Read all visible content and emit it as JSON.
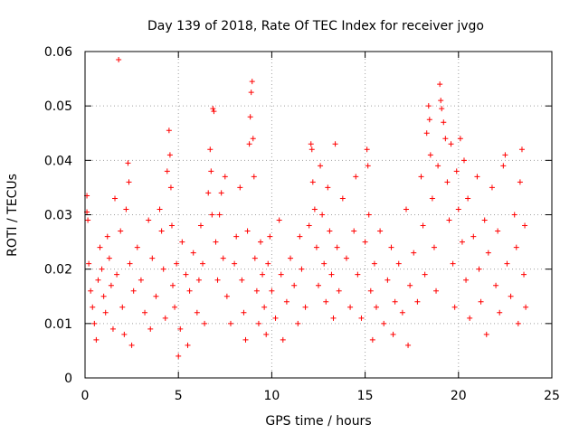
{
  "chart_data": {
    "type": "scatter",
    "title": "Day 139 of 2018, Rate Of TEC Index for receiver jvgo",
    "xlabel": "GPS time / hours",
    "ylabel": "ROTI / TECUs",
    "xlim": [
      0,
      25
    ],
    "ylim": [
      0,
      0.06
    ],
    "xticks": [
      0,
      5,
      10,
      15,
      20,
      25
    ],
    "xtick_labels": [
      "0",
      "5",
      "10",
      "15",
      "20",
      "25"
    ],
    "yticks": [
      0,
      0.01,
      0.02,
      0.03,
      0.04,
      0.05,
      0.06
    ],
    "ytick_labels": [
      "0",
      "0.01",
      "0.02",
      "0.03",
      "0.04",
      "0.05",
      "0.06"
    ],
    "grid": true,
    "marker": "+",
    "color": "#ff0000",
    "series": [
      {
        "name": "ROTI",
        "points": [
          [
            0.1,
            0.0335
          ],
          [
            0.1,
            0.0305
          ],
          [
            0.15,
            0.029
          ],
          [
            0.2,
            0.021
          ],
          [
            0.3,
            0.016
          ],
          [
            0.4,
            0.013
          ],
          [
            0.5,
            0.01
          ],
          [
            0.6,
            0.007
          ],
          [
            0.7,
            0.018
          ],
          [
            0.8,
            0.024
          ],
          [
            0.9,
            0.02
          ],
          [
            1.0,
            0.015
          ],
          [
            1.1,
            0.012
          ],
          [
            1.2,
            0.026
          ],
          [
            1.3,
            0.022
          ],
          [
            1.4,
            0.017
          ],
          [
            1.5,
            0.009
          ],
          [
            1.6,
            0.033
          ],
          [
            1.7,
            0.019
          ],
          [
            1.8,
            0.0585
          ],
          [
            1.9,
            0.027
          ],
          [
            2.0,
            0.013
          ],
          [
            2.1,
            0.008
          ],
          [
            2.2,
            0.031
          ],
          [
            2.3,
            0.0395
          ],
          [
            2.35,
            0.036
          ],
          [
            2.4,
            0.021
          ],
          [
            2.5,
            0.006
          ],
          [
            2.6,
            0.016
          ],
          [
            2.8,
            0.024
          ],
          [
            3.0,
            0.018
          ],
          [
            3.2,
            0.012
          ],
          [
            3.4,
            0.029
          ],
          [
            3.5,
            0.009
          ],
          [
            3.6,
            0.022
          ],
          [
            3.8,
            0.015
          ],
          [
            4.0,
            0.031
          ],
          [
            4.1,
            0.027
          ],
          [
            4.2,
            0.02
          ],
          [
            4.3,
            0.011
          ],
          [
            4.4,
            0.038
          ],
          [
            4.5,
            0.0455
          ],
          [
            4.55,
            0.041
          ],
          [
            4.6,
            0.035
          ],
          [
            4.65,
            0.028
          ],
          [
            4.7,
            0.017
          ],
          [
            4.8,
            0.013
          ],
          [
            4.9,
            0.021
          ],
          [
            5.0,
            0.004
          ],
          [
            5.1,
            0.009
          ],
          [
            5.2,
            0.025
          ],
          [
            5.4,
            0.019
          ],
          [
            5.5,
            0.006
          ],
          [
            5.6,
            0.016
          ],
          [
            5.8,
            0.023
          ],
          [
            6.0,
            0.012
          ],
          [
            6.1,
            0.018
          ],
          [
            6.2,
            0.028
          ],
          [
            6.3,
            0.021
          ],
          [
            6.4,
            0.01
          ],
          [
            6.6,
            0.034
          ],
          [
            6.7,
            0.042
          ],
          [
            6.75,
            0.038
          ],
          [
            6.8,
            0.03
          ],
          [
            6.85,
            0.0495
          ],
          [
            6.9,
            0.049
          ],
          [
            7.0,
            0.025
          ],
          [
            7.1,
            0.018
          ],
          [
            7.2,
            0.03
          ],
          [
            7.3,
            0.034
          ],
          [
            7.4,
            0.022
          ],
          [
            7.5,
            0.037
          ],
          [
            7.6,
            0.015
          ],
          [
            7.8,
            0.01
          ],
          [
            8.0,
            0.021
          ],
          [
            8.1,
            0.026
          ],
          [
            8.3,
            0.035
          ],
          [
            8.4,
            0.018
          ],
          [
            8.5,
            0.012
          ],
          [
            8.6,
            0.007
          ],
          [
            8.7,
            0.027
          ],
          [
            8.8,
            0.043
          ],
          [
            8.85,
            0.048
          ],
          [
            8.9,
            0.0525
          ],
          [
            8.95,
            0.0545
          ],
          [
            9.0,
            0.044
          ],
          [
            9.05,
            0.037
          ],
          [
            9.1,
            0.022
          ],
          [
            9.2,
            0.016
          ],
          [
            9.3,
            0.01
          ],
          [
            9.4,
            0.025
          ],
          [
            9.5,
            0.019
          ],
          [
            9.6,
            0.013
          ],
          [
            9.7,
            0.008
          ],
          [
            9.8,
            0.021
          ],
          [
            9.9,
            0.026
          ],
          [
            10.0,
            0.016
          ],
          [
            10.2,
            0.011
          ],
          [
            10.4,
            0.029
          ],
          [
            10.5,
            0.019
          ],
          [
            10.6,
            0.007
          ],
          [
            10.8,
            0.014
          ],
          [
            11.0,
            0.022
          ],
          [
            11.2,
            0.017
          ],
          [
            11.4,
            0.01
          ],
          [
            11.5,
            0.026
          ],
          [
            11.6,
            0.02
          ],
          [
            11.8,
            0.013
          ],
          [
            12.0,
            0.028
          ],
          [
            12.1,
            0.043
          ],
          [
            12.15,
            0.042
          ],
          [
            12.2,
            0.036
          ],
          [
            12.3,
            0.031
          ],
          [
            12.4,
            0.024
          ],
          [
            12.5,
            0.017
          ],
          [
            12.6,
            0.039
          ],
          [
            12.7,
            0.03
          ],
          [
            12.8,
            0.021
          ],
          [
            12.9,
            0.014
          ],
          [
            13.0,
            0.035
          ],
          [
            13.1,
            0.027
          ],
          [
            13.2,
            0.019
          ],
          [
            13.3,
            0.011
          ],
          [
            13.4,
            0.043
          ],
          [
            13.5,
            0.024
          ],
          [
            13.6,
            0.016
          ],
          [
            13.8,
            0.033
          ],
          [
            14.0,
            0.022
          ],
          [
            14.2,
            0.013
          ],
          [
            14.4,
            0.027
          ],
          [
            14.5,
            0.037
          ],
          [
            14.6,
            0.019
          ],
          [
            14.8,
            0.011
          ],
          [
            15.0,
            0.025
          ],
          [
            15.1,
            0.042
          ],
          [
            15.15,
            0.039
          ],
          [
            15.2,
            0.03
          ],
          [
            15.3,
            0.016
          ],
          [
            15.4,
            0.007
          ],
          [
            15.5,
            0.021
          ],
          [
            15.6,
            0.013
          ],
          [
            15.8,
            0.027
          ],
          [
            16.0,
            0.01
          ],
          [
            16.2,
            0.018
          ],
          [
            16.4,
            0.024
          ],
          [
            16.5,
            0.008
          ],
          [
            16.6,
            0.014
          ],
          [
            16.8,
            0.021
          ],
          [
            17.0,
            0.012
          ],
          [
            17.2,
            0.031
          ],
          [
            17.3,
            0.006
          ],
          [
            17.4,
            0.017
          ],
          [
            17.6,
            0.023
          ],
          [
            17.8,
            0.014
          ],
          [
            18.0,
            0.037
          ],
          [
            18.1,
            0.028
          ],
          [
            18.2,
            0.019
          ],
          [
            18.3,
            0.045
          ],
          [
            18.4,
            0.05
          ],
          [
            18.45,
            0.0475
          ],
          [
            18.5,
            0.041
          ],
          [
            18.6,
            0.033
          ],
          [
            18.7,
            0.024
          ],
          [
            18.8,
            0.016
          ],
          [
            18.9,
            0.039
          ],
          [
            19.0,
            0.054
          ],
          [
            19.05,
            0.051
          ],
          [
            19.1,
            0.0495
          ],
          [
            19.2,
            0.047
          ],
          [
            19.3,
            0.044
          ],
          [
            19.4,
            0.036
          ],
          [
            19.5,
            0.029
          ],
          [
            19.6,
            0.043
          ],
          [
            19.7,
            0.021
          ],
          [
            19.8,
            0.013
          ],
          [
            19.9,
            0.038
          ],
          [
            20.0,
            0.031
          ],
          [
            20.1,
            0.044
          ],
          [
            20.2,
            0.025
          ],
          [
            20.3,
            0.04
          ],
          [
            20.4,
            0.018
          ],
          [
            20.5,
            0.033
          ],
          [
            20.6,
            0.011
          ],
          [
            20.8,
            0.026
          ],
          [
            21.0,
            0.037
          ],
          [
            21.1,
            0.02
          ],
          [
            21.2,
            0.014
          ],
          [
            21.4,
            0.029
          ],
          [
            21.5,
            0.008
          ],
          [
            21.6,
            0.023
          ],
          [
            21.8,
            0.035
          ],
          [
            22.0,
            0.017
          ],
          [
            22.1,
            0.027
          ],
          [
            22.2,
            0.012
          ],
          [
            22.4,
            0.039
          ],
          [
            22.5,
            0.041
          ],
          [
            22.6,
            0.021
          ],
          [
            22.8,
            0.015
          ],
          [
            23.0,
            0.03
          ],
          [
            23.1,
            0.024
          ],
          [
            23.2,
            0.01
          ],
          [
            23.3,
            0.036
          ],
          [
            23.4,
            0.042
          ],
          [
            23.5,
            0.019
          ],
          [
            23.55,
            0.028
          ],
          [
            23.6,
            0.013
          ]
        ]
      }
    ]
  }
}
